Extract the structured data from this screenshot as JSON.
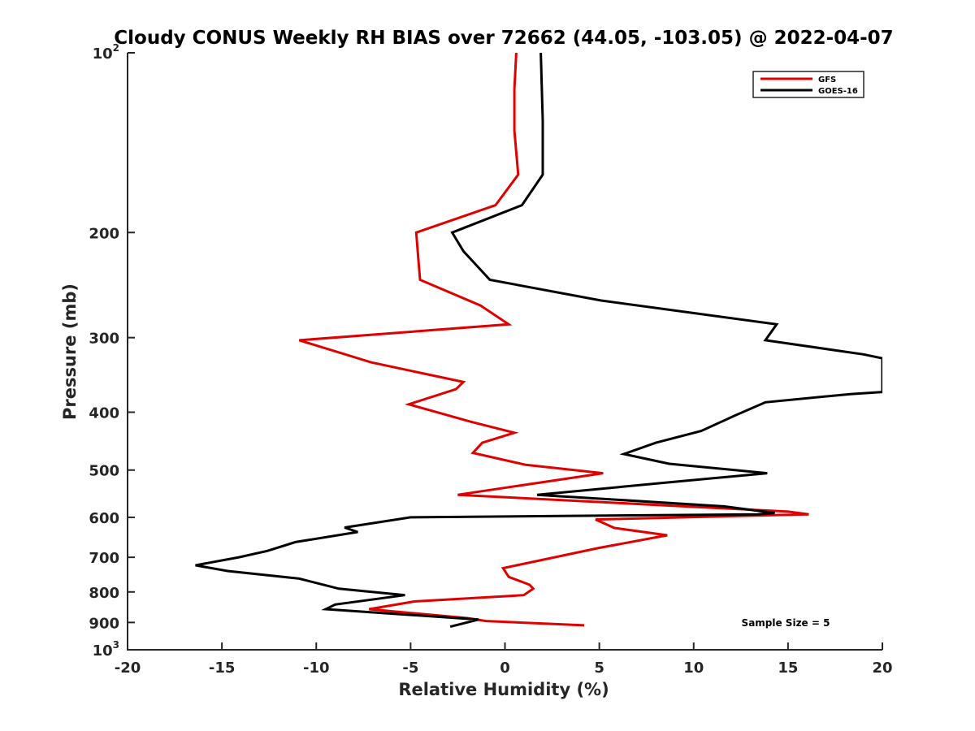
{
  "chart_data": {
    "type": "line",
    "title": "Cloudy CONUS Weekly RH BIAS over 72662 (44.05, -103.05) @ 2022-04-07",
    "xlabel": "Relative Humidity (%)",
    "ylabel": "Pressure (mb)",
    "xlim": [
      -20,
      20
    ],
    "ylim": [
      100,
      1000
    ],
    "y_scale": "log",
    "y_reversed": true,
    "grid": false,
    "legend_position": "top-right",
    "x_ticks": [
      "-20",
      "-15",
      "-10",
      "-5",
      "0",
      "5",
      "10",
      "15",
      "20"
    ],
    "y_ticks": [
      {
        "value": 100,
        "base": "10",
        "exp": "2"
      },
      {
        "value": 200,
        "label": "200"
      },
      {
        "value": 300,
        "label": "300"
      },
      {
        "value": 400,
        "label": "400"
      },
      {
        "value": 500,
        "label": "500"
      },
      {
        "value": 600,
        "label": "600"
      },
      {
        "value": 700,
        "label": "700"
      },
      {
        "value": 800,
        "label": "800"
      },
      {
        "value": 900,
        "label": "900"
      },
      {
        "value": 1000,
        "base": "10",
        "exp": "3"
      }
    ],
    "annotation": "Sample Size = 5",
    "series": [
      {
        "name": "GFS",
        "color": "#e00000",
        "points": [
          [
            0.6,
            100
          ],
          [
            0.5,
            115
          ],
          [
            0.5,
            135
          ],
          [
            0.7,
            160
          ],
          [
            -0.5,
            180
          ],
          [
            -4.7,
            200
          ],
          [
            -4.6,
            220
          ],
          [
            -4.5,
            240
          ],
          [
            -1.3,
            265
          ],
          [
            0.2,
            285
          ],
          [
            -10.9,
            303
          ],
          [
            -7.1,
            330
          ],
          [
            -2.2,
            356
          ],
          [
            -2.6,
            366
          ],
          [
            -5.1,
            388
          ],
          [
            -1.8,
            415
          ],
          [
            0.5,
            433
          ],
          [
            -1.2,
            450
          ],
          [
            -1.7,
            468
          ],
          [
            1.1,
            490
          ],
          [
            5.2,
            506
          ],
          [
            -2.5,
            550
          ],
          [
            15.0,
            587
          ],
          [
            16.1,
            593
          ],
          [
            4.8,
            605
          ],
          [
            5.8,
            625
          ],
          [
            8.6,
            643
          ],
          [
            5.0,
            675
          ],
          [
            -0.1,
            730
          ],
          [
            0.2,
            755
          ],
          [
            1.3,
            778
          ],
          [
            1.5,
            790
          ],
          [
            1.0,
            810
          ],
          [
            -4.8,
            830
          ],
          [
            -7.2,
            855
          ],
          [
            -2.0,
            885
          ],
          [
            -1.0,
            895
          ],
          [
            4.2,
            910
          ]
        ]
      },
      {
        "name": "GOES-16",
        "color": "#000000",
        "points": [
          [
            1.9,
            100
          ],
          [
            2.0,
            130
          ],
          [
            2.0,
            160
          ],
          [
            0.9,
            180
          ],
          [
            -2.8,
            200
          ],
          [
            -2.2,
            215
          ],
          [
            -0.8,
            240
          ],
          [
            5.1,
            260
          ],
          [
            14.4,
            285
          ],
          [
            13.8,
            303
          ],
          [
            19.0,
            320
          ],
          [
            20.0,
            325
          ],
          [
            20.0,
            370
          ],
          [
            18.3,
            373
          ],
          [
            13.8,
            385
          ],
          [
            12.2,
            405
          ],
          [
            10.4,
            430
          ],
          [
            8.0,
            450
          ],
          [
            6.3,
            470
          ],
          [
            8.7,
            488
          ],
          [
            13.9,
            506
          ],
          [
            8.5,
            525
          ],
          [
            1.7,
            550
          ],
          [
            11.6,
            575
          ],
          [
            14.3,
            590
          ],
          [
            13.4,
            593
          ],
          [
            -5.0,
            600
          ],
          [
            -8.5,
            624
          ],
          [
            -7.8,
            635
          ],
          [
            -11.1,
            660
          ],
          [
            -12.6,
            683
          ],
          [
            -14.1,
            700
          ],
          [
            -16.4,
            722
          ],
          [
            -14.7,
            738
          ],
          [
            -10.9,
            760
          ],
          [
            -8.8,
            790
          ],
          [
            -5.3,
            810
          ],
          [
            -9.0,
            840
          ],
          [
            -9.5,
            855
          ],
          [
            -1.4,
            890
          ],
          [
            -2.9,
            915
          ]
        ]
      }
    ]
  }
}
